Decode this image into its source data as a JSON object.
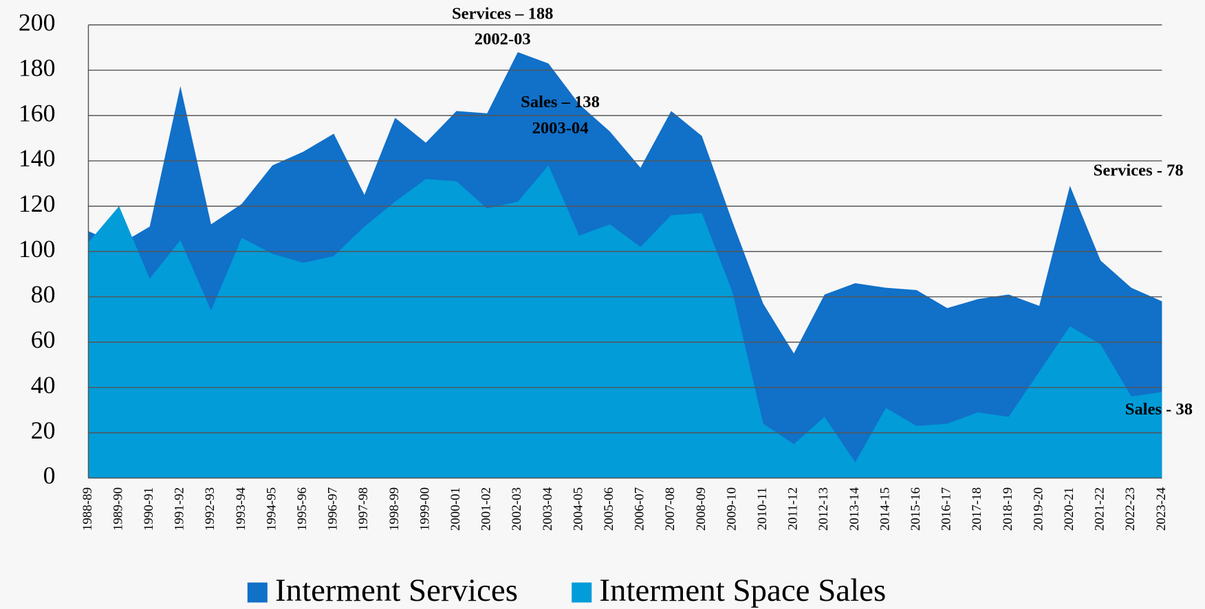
{
  "chart_data": {
    "type": "area",
    "categories": [
      "1988-89",
      "1989-90",
      "1990-91",
      "1991-92",
      "1992-93",
      "1993-94",
      "1994-95",
      "1995-96",
      "1996-97",
      "1997-98",
      "1998-99",
      "1999-00",
      "2000-01",
      "2001-02",
      "2002-03",
      "2003-04",
      "2004-05",
      "2005-06",
      "2006-07",
      "2007-08",
      "2008-09",
      "2009-10",
      "2010-11",
      "2011-12",
      "2012-13",
      "2013-14",
      "2014-15",
      "2015-16",
      "2016-17",
      "2017-18",
      "2018-19",
      "2019-20",
      "2020-21",
      "2021-22",
      "2022-23",
      "2023-24"
    ],
    "series": [
      {
        "name": "Interment Services",
        "color": "#1170c8",
        "values": [
          109,
          103,
          111,
          173,
          112,
          121,
          138,
          144,
          152,
          125,
          159,
          148,
          162,
          161,
          188,
          183,
          165,
          153,
          137,
          162,
          151,
          113,
          77,
          55,
          81,
          86,
          84,
          83,
          75,
          79,
          81,
          76,
          129,
          96,
          84,
          78
        ]
      },
      {
        "name": "Interment Space Sales",
        "color": "#029cd9",
        "values": [
          104,
          120,
          88,
          105,
          74,
          106,
          99,
          95,
          98,
          111,
          122,
          132,
          131,
          119,
          122,
          138,
          107,
          112,
          102,
          116,
          117,
          82,
          24,
          15,
          27,
          7,
          31,
          23,
          24,
          29,
          27,
          47,
          67,
          59,
          36,
          38
        ]
      }
    ],
    "ylim": [
      0,
      200
    ],
    "yticks": [
      0,
      20,
      40,
      60,
      80,
      100,
      120,
      140,
      160,
      180,
      200
    ],
    "grid": true,
    "legend": "bottom",
    "annotations": [
      "Services – 188",
      "2002-03",
      "Sales – 138",
      "2003-04",
      "Services - 78",
      "Sales - 38"
    ]
  }
}
